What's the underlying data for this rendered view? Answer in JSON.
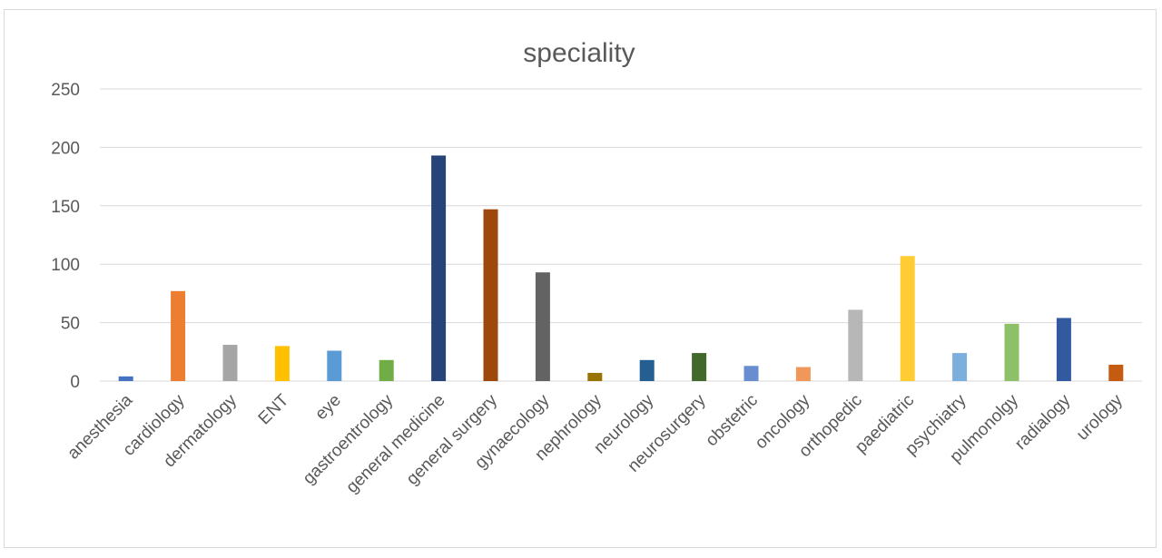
{
  "chart_data": {
    "type": "bar",
    "title": "speciality",
    "xlabel": "",
    "ylabel": "",
    "ylim": [
      0,
      250
    ],
    "yticks": [
      0,
      50,
      100,
      150,
      200,
      250
    ],
    "grid": true,
    "legend": "none",
    "categories": [
      "anesthesia",
      "cardiology",
      "dermatology",
      "ENT",
      "eye",
      "gastroentrology",
      "general medicine",
      "general surgery",
      "gynaecology",
      "nephrology",
      "neurology",
      "neurosurgery",
      "obstetric",
      "oncology",
      "orthopedic",
      "paediatric",
      "psychiatry",
      "pulmonolgy",
      "radialogy",
      "urology"
    ],
    "values": [
      4,
      77,
      31,
      30,
      26,
      18,
      193,
      147,
      93,
      7,
      18,
      24,
      13,
      12,
      61,
      107,
      24,
      49,
      54,
      14
    ],
    "colors": [
      "#4472c4",
      "#ed7d31",
      "#a5a5a5",
      "#ffc000",
      "#5b9bd5",
      "#70ad47",
      "#264478",
      "#9e480e",
      "#636363",
      "#997300",
      "#255e91",
      "#43682b",
      "#698ed0",
      "#f1975a",
      "#b7b7b7",
      "#ffcd33",
      "#7cafdd",
      "#8cc168",
      "#335aa1",
      "#c55a11"
    ]
  }
}
